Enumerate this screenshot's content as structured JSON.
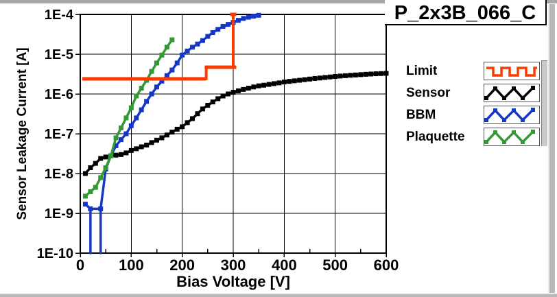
{
  "chart_data": {
    "type": "line",
    "title": "P_2x3B_066_C",
    "xlabel": "Bias Voltage [V]",
    "ylabel": "Sensor Leakage Current [A]",
    "x_range": [
      0,
      600
    ],
    "y_range": [
      1e-10,
      0.0001
    ],
    "y_scale": "log",
    "grid": true,
    "legend_position": "right",
    "x_major_ticks": [
      0,
      100,
      200,
      300,
      400,
      500,
      600
    ],
    "x_minor_ticks": [
      50,
      150,
      250,
      350,
      450,
      550
    ],
    "y_tick_labels": [
      "1E-4",
      "1E-5",
      "1E-6",
      "1E-7",
      "1E-8",
      "1E-9",
      "1E-10"
    ],
    "series": [
      {
        "name": "Limit",
        "color": "#fa3b00",
        "glyph": "square-wave",
        "width": 4,
        "marker": [
          9,
          5
        ],
        "z": 3,
        "points": [
          [
            5,
            2.4e-06
          ],
          [
            247,
            2.4e-06
          ],
          [
            247,
            4.7e-06
          ],
          [
            300,
            4.7e-06
          ],
          [
            300,
            0.0001
          ]
        ],
        "marker_points": [
          [
            10,
            2.4e-06
          ],
          [
            20,
            2.4e-06
          ],
          [
            30,
            2.4e-06
          ],
          [
            40,
            2.4e-06
          ],
          [
            50,
            2.4e-06
          ],
          [
            60,
            2.4e-06
          ],
          [
            70,
            2.4e-06
          ],
          [
            80,
            2.4e-06
          ],
          [
            90,
            2.4e-06
          ],
          [
            100,
            2.4e-06
          ],
          [
            110,
            2.4e-06
          ],
          [
            120,
            2.4e-06
          ],
          [
            130,
            2.4e-06
          ],
          [
            140,
            2.4e-06
          ],
          [
            150,
            2.4e-06
          ],
          [
            160,
            2.4e-06
          ],
          [
            170,
            2.4e-06
          ],
          [
            180,
            2.4e-06
          ],
          [
            190,
            2.4e-06
          ],
          [
            200,
            2.4e-06
          ],
          [
            210,
            2.4e-06
          ],
          [
            220,
            2.4e-06
          ],
          [
            230,
            2.4e-06
          ],
          [
            240,
            2.4e-06
          ],
          [
            250,
            4.7e-06
          ],
          [
            260,
            4.7e-06
          ],
          [
            270,
            4.7e-06
          ],
          [
            280,
            4.7e-06
          ],
          [
            290,
            4.7e-06
          ],
          [
            300,
            4.7e-06
          ],
          [
            300,
            0.0001
          ]
        ]
      },
      {
        "name": "Sensor",
        "color": "#000000",
        "glyph": "triangle-wave",
        "width": 3.5,
        "marker": [
          7,
          7
        ],
        "z": 0,
        "points": [
          [
            10,
            1e-08
          ],
          [
            20,
            1.4e-08
          ],
          [
            30,
            1.8e-08
          ],
          [
            40,
            2.4e-08
          ],
          [
            50,
            2.6e-08
          ],
          [
            60,
            2.8e-08
          ],
          [
            70,
            2.9e-08
          ],
          [
            80,
            3e-08
          ],
          [
            90,
            3.3e-08
          ],
          [
            100,
            3.8e-08
          ],
          [
            110,
            4.2e-08
          ],
          [
            120,
            4.7e-08
          ],
          [
            130,
            5.2e-08
          ],
          [
            140,
            6e-08
          ],
          [
            150,
            6.9e-08
          ],
          [
            160,
            7.9e-08
          ],
          [
            170,
            9.3e-08
          ],
          [
            180,
            1.1e-07
          ],
          [
            190,
            1.3e-07
          ],
          [
            200,
            1.5e-07
          ],
          [
            210,
            1.9e-07
          ],
          [
            220,
            2.4e-07
          ],
          [
            230,
            3.2e-07
          ],
          [
            240,
            4.2e-07
          ],
          [
            250,
            5.2e-07
          ],
          [
            260,
            6.3e-07
          ],
          [
            270,
            7.6e-07
          ],
          [
            280,
            8.9e-07
          ],
          [
            290,
            1e-06
          ],
          [
            300,
            1.1e-06
          ],
          [
            310,
            1.2e-06
          ],
          [
            320,
            1.3e-06
          ],
          [
            330,
            1.4e-06
          ],
          [
            340,
            1.5e-06
          ],
          [
            350,
            1.6e-06
          ],
          [
            360,
            1.66e-06
          ],
          [
            370,
            1.74e-06
          ],
          [
            380,
            1.82e-06
          ],
          [
            390,
            1.9e-06
          ],
          [
            400,
            2e-06
          ],
          [
            410,
            2.07e-06
          ],
          [
            420,
            2.14e-06
          ],
          [
            430,
            2.21e-06
          ],
          [
            440,
            2.29e-06
          ],
          [
            450,
            2.37e-06
          ],
          [
            460,
            2.45e-06
          ],
          [
            470,
            2.52e-06
          ],
          [
            480,
            2.6e-06
          ],
          [
            490,
            2.68e-06
          ],
          [
            500,
            2.75e-06
          ],
          [
            510,
            2.82e-06
          ],
          [
            520,
            2.88e-06
          ],
          [
            530,
            2.95e-06
          ],
          [
            540,
            3e-06
          ],
          [
            550,
            3.06e-06
          ],
          [
            560,
            3.12e-06
          ],
          [
            570,
            3.17e-06
          ],
          [
            580,
            3.22e-06
          ],
          [
            590,
            3.26e-06
          ],
          [
            600,
            3.3e-06
          ]
        ]
      },
      {
        "name": "BBM",
        "color": "#1437c8",
        "glyph": "triangle-wave",
        "width": 3.5,
        "marker": [
          7,
          7
        ],
        "z": 1,
        "points": [
          [
            10,
            1.7e-09
          ],
          [
            20,
            1.3e-09
          ],
          [
            20,
            1e-10
          ],
          [
            20,
            1.3e-09
          ],
          [
            40,
            1.3e-09
          ],
          [
            40,
            1e-10
          ],
          [
            40,
            1.3e-09
          ],
          [
            50,
            1.3e-08
          ],
          [
            60,
            2.8e-08
          ],
          [
            70,
            5e-08
          ],
          [
            80,
            7.1e-08
          ],
          [
            90,
            1e-07
          ],
          [
            100,
            1.6e-07
          ],
          [
            110,
            2.5e-07
          ],
          [
            120,
            4e-07
          ],
          [
            130,
            6.5e-07
          ],
          [
            140,
            1e-06
          ],
          [
            150,
            1.5e-06
          ],
          [
            160,
            2.1e-06
          ],
          [
            170,
            2.9e-06
          ],
          [
            180,
            4e-06
          ],
          [
            190,
            6e-06
          ],
          [
            200,
            9.5e-06
          ],
          [
            210,
            1.2e-05
          ],
          [
            220,
            1.5e-05
          ],
          [
            230,
            1.8e-05
          ],
          [
            240,
            2.2e-05
          ],
          [
            250,
            2.8e-05
          ],
          [
            260,
            3.5e-05
          ],
          [
            270,
            4.2e-05
          ],
          [
            280,
            5e-05
          ],
          [
            290,
            5.6e-05
          ],
          [
            300,
            6.3e-05
          ],
          [
            310,
            7.1e-05
          ],
          [
            320,
            7.9e-05
          ],
          [
            330,
            8.5e-05
          ],
          [
            340,
            9e-05
          ],
          [
            350,
            9.5e-05
          ]
        ],
        "marker_points": [
          [
            10,
            1.7e-09
          ],
          [
            20,
            1.3e-09
          ],
          [
            40,
            1.3e-09
          ],
          [
            50,
            1.3e-08
          ],
          [
            60,
            2.8e-08
          ],
          [
            70,
            5e-08
          ],
          [
            80,
            7.1e-08
          ],
          [
            90,
            1e-07
          ],
          [
            100,
            1.6e-07
          ],
          [
            110,
            2.5e-07
          ],
          [
            120,
            4e-07
          ],
          [
            130,
            6.5e-07
          ],
          [
            140,
            1e-06
          ],
          [
            150,
            1.5e-06
          ],
          [
            160,
            2.1e-06
          ],
          [
            170,
            2.9e-06
          ],
          [
            180,
            4e-06
          ],
          [
            190,
            6e-06
          ],
          [
            200,
            9.5e-06
          ],
          [
            210,
            1.2e-05
          ],
          [
            220,
            1.5e-05
          ],
          [
            230,
            1.8e-05
          ],
          [
            240,
            2.2e-05
          ],
          [
            250,
            2.8e-05
          ],
          [
            260,
            3.5e-05
          ],
          [
            270,
            4.2e-05
          ],
          [
            280,
            5e-05
          ],
          [
            290,
            5.6e-05
          ],
          [
            300,
            6.3e-05
          ],
          [
            310,
            7.1e-05
          ],
          [
            320,
            7.9e-05
          ],
          [
            330,
            8.5e-05
          ],
          [
            340,
            9e-05
          ],
          [
            350,
            9.5e-05
          ]
        ]
      },
      {
        "name": "Plaquette",
        "color": "#339933",
        "glyph": "triangle-wave",
        "width": 3.5,
        "marker": [
          7,
          7
        ],
        "z": 2,
        "points": [
          [
            10,
            2.7e-09
          ],
          [
            20,
            3.5e-09
          ],
          [
            30,
            4.5e-09
          ],
          [
            40,
            7.9e-09
          ],
          [
            50,
            1.4e-08
          ],
          [
            60,
            2.8e-08
          ],
          [
            70,
            7.9e-08
          ],
          [
            80,
            1.4e-07
          ],
          [
            90,
            2.5e-07
          ],
          [
            100,
            4.5e-07
          ],
          [
            110,
            8.9e-07
          ],
          [
            120,
            1.4e-06
          ],
          [
            130,
            2.2e-06
          ],
          [
            140,
            3.7e-06
          ],
          [
            150,
            6e-06
          ],
          [
            160,
            9.5e-06
          ],
          [
            170,
            1.5e-05
          ],
          [
            180,
            2.3e-05
          ]
        ]
      }
    ]
  }
}
